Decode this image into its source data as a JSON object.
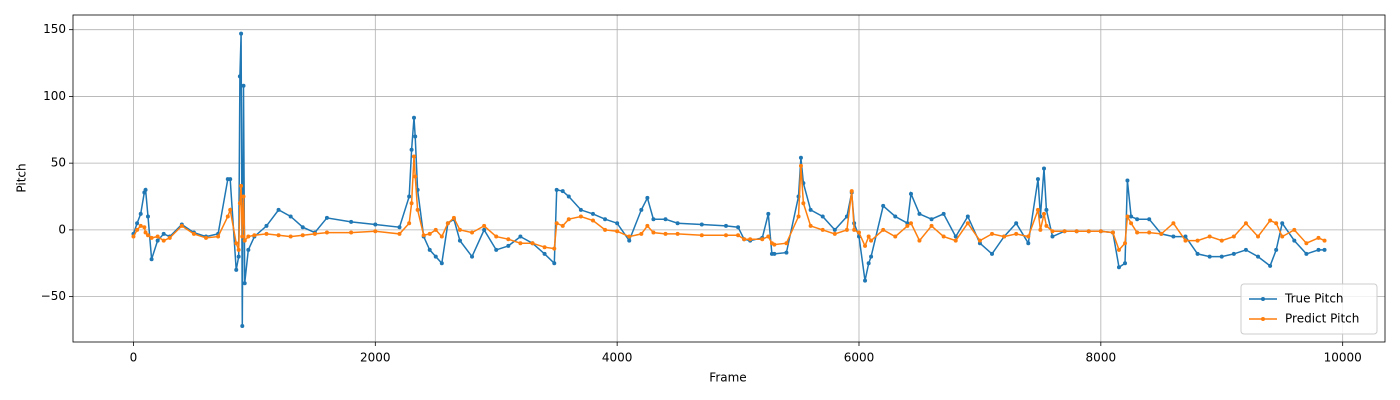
{
  "chart_data": {
    "type": "line",
    "x_label": "Frame",
    "y_label": "Pitch",
    "x": [
      0,
      30,
      60,
      90,
      100,
      120,
      150,
      200,
      250,
      300,
      400,
      500,
      600,
      700,
      780,
      800,
      850,
      870,
      880,
      890,
      900,
      910,
      920,
      950,
      1000,
      1100,
      1200,
      1300,
      1400,
      1500,
      1600,
      1800,
      2000,
      2200,
      2280,
      2300,
      2320,
      2330,
      2350,
      2400,
      2450,
      2500,
      2550,
      2600,
      2650,
      2700,
      2800,
      2900,
      3000,
      3100,
      3200,
      3300,
      3400,
      3480,
      3500,
      3550,
      3600,
      3700,
      3800,
      3900,
      4000,
      4100,
      4200,
      4250,
      4300,
      4400,
      4500,
      4700,
      4900,
      5000,
      5050,
      5100,
      5200,
      5250,
      5280,
      5300,
      5400,
      5500,
      5520,
      5540,
      5600,
      5700,
      5800,
      5900,
      5940,
      5960,
      6000,
      6050,
      6080,
      6100,
      6200,
      6300,
      6400,
      6430,
      6500,
      6600,
      6700,
      6800,
      6900,
      7000,
      7100,
      7200,
      7300,
      7400,
      7480,
      7500,
      7530,
      7550,
      7600,
      7700,
      7800,
      7900,
      8000,
      8100,
      8150,
      8200,
      8220,
      8250,
      8300,
      8400,
      8500,
      8600,
      8700,
      8800,
      8900,
      9000,
      9100,
      9200,
      9300,
      9400,
      9450,
      9500,
      9600,
      9700,
      9800,
      9850
    ],
    "series": [
      {
        "name": "True Pitch",
        "color": "#1f77b4",
        "values": [
          -3,
          5,
          12,
          28,
          30,
          10,
          -22,
          -8,
          -3,
          -5,
          4,
          -2,
          -5,
          -3,
          38,
          38,
          -30,
          -20,
          115,
          147,
          -72,
          108,
          -40,
          -15,
          -5,
          3,
          15,
          10,
          2,
          -2,
          9,
          6,
          4,
          2,
          25,
          60,
          84,
          70,
          30,
          -5,
          -15,
          -20,
          -25,
          5,
          8,
          -8,
          -20,
          0,
          -15,
          -12,
          -5,
          -10,
          -18,
          -25,
          30,
          29,
          25,
          15,
          12,
          8,
          5,
          -8,
          15,
          24,
          8,
          8,
          5,
          4,
          3,
          2,
          -7,
          -8,
          -6,
          12,
          -18,
          -18,
          -17,
          25,
          54,
          35,
          15,
          10,
          0,
          10,
          28,
          5,
          -5,
          -38,
          -25,
          -20,
          18,
          10,
          5,
          27,
          12,
          8,
          12,
          -5,
          10,
          -10,
          -18,
          -5,
          5,
          -10,
          38,
          10,
          46,
          15,
          -5,
          -1,
          -1,
          -1,
          -1,
          -2,
          -28,
          -25,
          37,
          10,
          8,
          8,
          -3,
          -5,
          -5,
          -18,
          -20,
          -20,
          -18,
          -15,
          -20,
          -27,
          -15,
          5,
          -8,
          -18,
          -15,
          -15
        ]
      },
      {
        "name": "Predict Pitch",
        "color": "#ff7f0e",
        "values": [
          -5,
          0,
          3,
          2,
          -2,
          -4,
          -6,
          -5,
          -8,
          -6,
          3,
          -3,
          -6,
          -5,
          10,
          15,
          -10,
          -15,
          20,
          33,
          -5,
          25,
          -8,
          -5,
          -4,
          -3,
          -4,
          -5,
          -4,
          -3,
          -2,
          -2,
          -1,
          -3,
          5,
          20,
          55,
          40,
          15,
          -4,
          -3,
          0,
          -5,
          5,
          9,
          0,
          -2,
          3,
          -5,
          -7,
          -10,
          -10,
          -13,
          -14,
          5,
          3,
          8,
          10,
          7,
          0,
          -1,
          -5,
          -3,
          3,
          -2,
          -3,
          -3,
          -4,
          -4,
          -4,
          -7,
          -7,
          -7,
          -5,
          -10,
          -11,
          -10,
          10,
          48,
          20,
          3,
          0,
          -3,
          0,
          29,
          0,
          -2,
          -12,
          -5,
          -8,
          0,
          -5,
          3,
          5,
          -8,
          3,
          -5,
          -8,
          5,
          -8,
          -3,
          -5,
          -3,
          -5,
          15,
          0,
          12,
          3,
          -1,
          -1,
          -1,
          -1,
          -1,
          -2,
          -15,
          -10,
          10,
          5,
          -2,
          -2,
          -3,
          5,
          -8,
          -8,
          -5,
          -8,
          -5,
          5,
          -5,
          7,
          5,
          -5,
          0,
          -10,
          -6,
          -8
        ]
      }
    ],
    "xlim": [
      -500,
      10350
    ],
    "ylim": [
      -84,
      161
    ],
    "xticks": [
      0,
      2000,
      4000,
      6000,
      8000,
      10000
    ],
    "yticks": [
      {
        "value": -50,
        "label": "−50"
      },
      0,
      50,
      100,
      150
    ],
    "grid": true,
    "legend": "lower right"
  }
}
